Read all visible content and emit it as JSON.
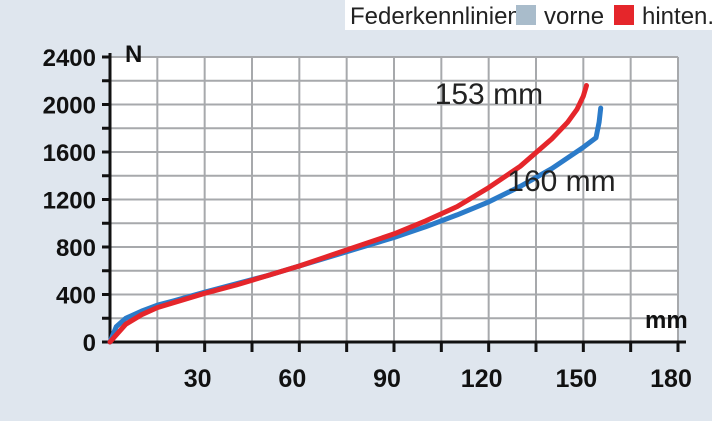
{
  "chart_data": {
    "type": "line",
    "legend": {
      "title": "Federkennlinien:",
      "position": "top-right",
      "items": [
        {
          "label": "vorne",
          "color": "#a9bccb"
        },
        {
          "label": "hinten.",
          "color": "#e5262b"
        }
      ]
    },
    "ylabel": "N",
    "xlabel": "mm",
    "xlim": [
      0,
      180
    ],
    "ylim": [
      0,
      2400
    ],
    "x_ticks": [
      30,
      60,
      90,
      120,
      150,
      180
    ],
    "y_ticks": [
      0,
      400,
      800,
      1200,
      1600,
      2000,
      2400
    ],
    "grid": true,
    "series": [
      {
        "color": "#2b7bc9",
        "x": [
          0,
          2,
          5,
          10,
          15,
          20,
          30,
          40,
          50,
          60,
          70,
          80,
          90,
          100,
          110,
          120,
          130,
          140,
          150,
          154,
          155,
          155.5
        ],
        "y": [
          0,
          130,
          200,
          260,
          310,
          345,
          420,
          490,
          560,
          640,
          720,
          800,
          880,
          970,
          1070,
          1180,
          1310,
          1460,
          1640,
          1720,
          1850,
          1970
        ]
      },
      {
        "color": "#e5262b",
        "x": [
          0,
          2,
          5,
          10,
          15,
          20,
          30,
          40,
          50,
          60,
          70,
          80,
          90,
          100,
          110,
          120,
          130,
          140,
          145,
          148,
          150,
          151
        ],
        "y": [
          0,
          60,
          150,
          230,
          290,
          330,
          410,
          480,
          560,
          640,
          730,
          820,
          910,
          1020,
          1140,
          1300,
          1480,
          1710,
          1850,
          1960,
          2070,
          2160
        ]
      }
    ],
    "annotations": [
      {
        "text": "153 mm",
        "x": 133,
        "y": 2130
      },
      {
        "text": "160 mm",
        "x": 156,
        "y": 1400
      }
    ]
  }
}
